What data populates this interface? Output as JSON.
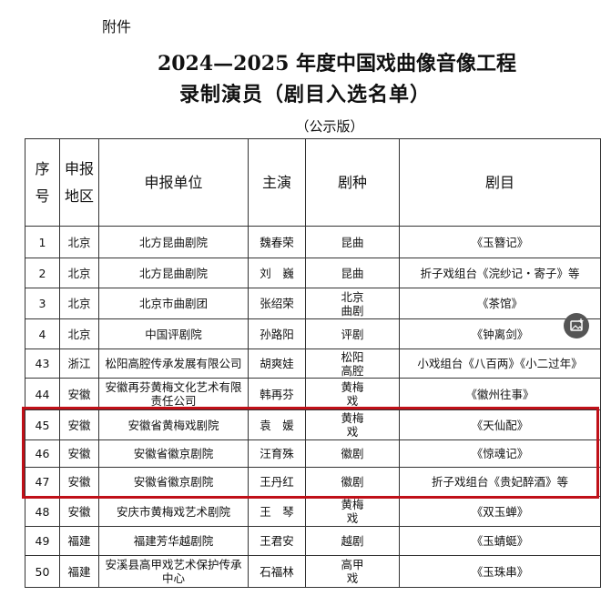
{
  "header": {
    "attachment": "附件",
    "title_line1": "2024—2025 年度中国戏曲像音像工程",
    "title_line2": "录制演员（剧目入选名单）",
    "subtitle": "（公示版）"
  },
  "table": {
    "columns": [
      "序号",
      "申报地区",
      "申报单位",
      "主演",
      "剧种",
      "剧目"
    ],
    "rows": [
      [
        "1",
        "北京",
        "北方昆曲剧院",
        "魏春荣",
        "昆曲",
        "《玉簪记》"
      ],
      [
        "2",
        "北京",
        "北方昆曲剧院",
        "刘　巍",
        "昆曲",
        "折子戏组台《浣纱记・寄子》等"
      ],
      [
        "3",
        "北京",
        "北京市曲剧团",
        "张绍荣",
        "北京曲剧",
        "《茶馆》"
      ],
      [
        "4",
        "北京",
        "中国评剧院",
        "孙路阳",
        "评剧",
        "《钟离剑》"
      ],
      [
        "43",
        "浙江",
        "松阳高腔传承发展有限公司",
        "胡爽娃",
        "松阳高腔",
        "小戏组台《八百两》《小二过年》"
      ],
      [
        "44",
        "安徽",
        "安徽再芬黄梅文化艺术有限责任公司",
        "韩再芬",
        "黄梅戏",
        "《徽州往事》"
      ],
      [
        "45",
        "安徽",
        "安徽省黄梅戏剧院",
        "袁　媛",
        "黄梅戏",
        "《天仙配》"
      ],
      [
        "46",
        "安徽",
        "安徽省徽京剧院",
        "汪育殊",
        "徽剧",
        "《惊魂记》"
      ],
      [
        "47",
        "安徽",
        "安徽省徽京剧院",
        "王丹红",
        "徽剧",
        "折子戏组台《贵妃醉酒》等"
      ],
      [
        "48",
        "安徽",
        "安庆市黄梅戏艺术剧院",
        "王　琴",
        "黄梅戏",
        "《双玉蝉》"
      ],
      [
        "49",
        "福建",
        "福建芳华越剧院",
        "王君安",
        "越剧",
        "《玉蜻蜓》"
      ],
      [
        "50",
        "福建",
        "安溪县高甲戏艺术保护传承中心",
        "石福林",
        "高甲戏",
        "《玉珠串》"
      ]
    ]
  }
}
